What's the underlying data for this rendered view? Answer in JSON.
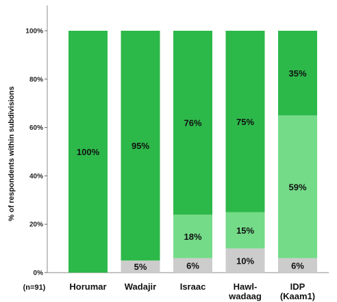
{
  "chart_data": {
    "type": "bar",
    "stacked": true,
    "percent": true,
    "ylabel": "% of respondents within subdivisions",
    "sample_note": "(n=91)",
    "ylim": [
      0,
      100
    ],
    "yticks": [
      0,
      20,
      40,
      60,
      80,
      100
    ],
    "ytick_labels": [
      "0%",
      "20%",
      "40%",
      "60%",
      "80%",
      "100%"
    ],
    "categories": [
      [
        "Horumar"
      ],
      [
        "Wadajir"
      ],
      [
        "Israac"
      ],
      [
        "Hawl-",
        "wadaag"
      ],
      [
        "IDP",
        "(Kaam1)"
      ]
    ],
    "series": [
      {
        "color": "#cccccc",
        "values": [
          0,
          5,
          6,
          10,
          6
        ],
        "labels": [
          "",
          "5%",
          "6%",
          "10%",
          "6%"
        ]
      },
      {
        "color": "#74db88",
        "values": [
          0,
          0,
          18,
          15,
          59
        ],
        "labels": [
          "",
          "",
          "18%",
          "15%",
          "59%"
        ]
      },
      {
        "color": "#2db84a",
        "values": [
          100,
          95,
          76,
          75,
          35
        ],
        "labels": [
          "100%",
          "95%",
          "76%",
          "75%",
          "35%"
        ]
      }
    ],
    "grid": false,
    "legend": "none"
  }
}
